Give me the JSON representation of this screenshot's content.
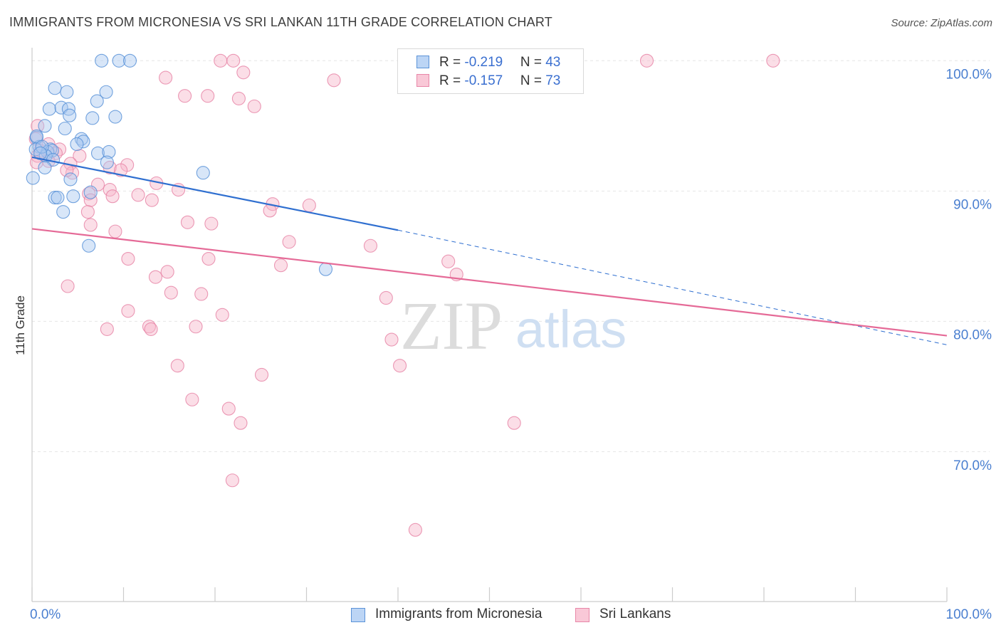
{
  "title": "IMMIGRANTS FROM MICRONESIA VS SRI LANKAN 11TH GRADE CORRELATION CHART",
  "source": "Source: ZipAtlas.com",
  "watermark": {
    "zip": "ZIP",
    "atlas": "atlas"
  },
  "legend": {
    "series1": {
      "r_label": "R = ",
      "r_value": "-0.219",
      "n_label": "N = ",
      "n_value": "43"
    },
    "series2": {
      "r_label": "R = ",
      "r_value": "-0.157",
      "n_label": "N = ",
      "n_value": "73"
    }
  },
  "colors": {
    "blue_fill": "#a8c8f0",
    "blue_stroke": "#5b93d8",
    "blue_line": "#2f6fd0",
    "pink_fill": "#f6b5ca",
    "pink_stroke": "#e887a8",
    "pink_line": "#e56a97",
    "grid": "#e6e6e6",
    "axis_text": "#4a7fd0"
  },
  "chart_data": {
    "type": "scatter",
    "title": "IMMIGRANTS FROM MICRONESIA VS SRI LANKAN 11TH GRADE CORRELATION CHART",
    "xlabel": "",
    "ylabel": "11th Grade",
    "xlim": [
      0,
      100
    ],
    "ylim": [
      59.5,
      102
    ],
    "x_tick_labels": [
      {
        "value": 0,
        "label": "0.0%"
      },
      {
        "value": 100,
        "label": "100.0%"
      }
    ],
    "y_tick_labels": [
      {
        "value": 100,
        "label": "100.0%"
      },
      {
        "value": 90,
        "label": "90.0%"
      },
      {
        "value": 80,
        "label": "80.0%"
      },
      {
        "value": 70,
        "label": "70.0%"
      }
    ],
    "y_gridlines": [
      101,
      91,
      81,
      71
    ],
    "series": [
      {
        "name": "Immigrants from Micronesia",
        "color": "blue",
        "R": -0.219,
        "N": 43,
        "trend": {
          "x0": 0,
          "y0": 93.6,
          "x1": 40,
          "y1": 88.0,
          "dash_to_x": 100,
          "dash_y_end": 79.2
        },
        "points": [
          [
            7.6,
            101
          ],
          [
            9.5,
            101
          ],
          [
            10.7,
            101
          ],
          [
            2.5,
            98.9
          ],
          [
            3.8,
            98.6
          ],
          [
            8.1,
            98.6
          ],
          [
            7.1,
            97.9
          ],
          [
            1.9,
            97.3
          ],
          [
            3.2,
            97.4
          ],
          [
            4.0,
            97.3
          ],
          [
            4.1,
            96.8
          ],
          [
            6.6,
            96.6
          ],
          [
            9.1,
            96.7
          ],
          [
            1.4,
            96.0
          ],
          [
            3.6,
            95.8
          ],
          [
            0.5,
            95.1
          ],
          [
            5.4,
            95.0
          ],
          [
            5.6,
            94.8
          ],
          [
            4.9,
            94.6
          ],
          [
            0.8,
            94.4
          ],
          [
            2.0,
            94.2
          ],
          [
            1.7,
            94.0
          ],
          [
            2.2,
            94.1
          ],
          [
            7.2,
            93.9
          ],
          [
            8.4,
            94.0
          ],
          [
            0.4,
            94.2
          ],
          [
            1.5,
            93.7
          ],
          [
            2.3,
            93.4
          ],
          [
            8.2,
            93.2
          ],
          [
            1.4,
            92.8
          ],
          [
            18.7,
            92.4
          ],
          [
            0.1,
            92.0
          ],
          [
            4.2,
            91.9
          ],
          [
            6.4,
            90.9
          ],
          [
            4.5,
            90.6
          ],
          [
            2.5,
            90.5
          ],
          [
            2.8,
            90.5
          ],
          [
            3.4,
            89.4
          ],
          [
            6.2,
            86.8
          ],
          [
            32.1,
            85.0
          ],
          [
            0.5,
            95.2
          ],
          [
            1.1,
            94.4
          ],
          [
            0.9,
            93.9
          ]
        ]
      },
      {
        "name": "Sri Lankans",
        "color": "pink",
        "R": -0.157,
        "N": 73,
        "trend": {
          "x0": 0,
          "y0": 88.1,
          "x1": 100,
          "y1": 79.9
        },
        "points": [
          [
            20.6,
            101
          ],
          [
            22.0,
            101
          ],
          [
            67.2,
            101
          ],
          [
            81.0,
            101
          ],
          [
            23.1,
            100.1
          ],
          [
            14.6,
            99.7
          ],
          [
            33.0,
            99.5
          ],
          [
            16.7,
            98.3
          ],
          [
            19.2,
            98.3
          ],
          [
            22.6,
            98.1
          ],
          [
            24.3,
            97.5
          ],
          [
            0.4,
            95.0
          ],
          [
            1.8,
            94.6
          ],
          [
            0.9,
            94.1
          ],
          [
            3.0,
            94.2
          ],
          [
            0.6,
            93.7
          ],
          [
            2.6,
            93.9
          ],
          [
            5.2,
            93.7
          ],
          [
            1.8,
            93.3
          ],
          [
            0.5,
            93.2
          ],
          [
            4.2,
            93.1
          ],
          [
            4.4,
            92.4
          ],
          [
            3.8,
            92.6
          ],
          [
            8.5,
            92.8
          ],
          [
            10.4,
            93.0
          ],
          [
            9.7,
            92.6
          ],
          [
            7.2,
            91.5
          ],
          [
            13.6,
            91.6
          ],
          [
            6.2,
            90.8
          ],
          [
            8.5,
            91.1
          ],
          [
            16.0,
            91.1
          ],
          [
            11.6,
            90.7
          ],
          [
            8.8,
            90.6
          ],
          [
            13.1,
            90.3
          ],
          [
            6.4,
            90.3
          ],
          [
            26.3,
            90.0
          ],
          [
            30.3,
            89.9
          ],
          [
            6.1,
            89.4
          ],
          [
            26.0,
            89.5
          ],
          [
            17.0,
            88.6
          ],
          [
            19.6,
            88.5
          ],
          [
            9.1,
            87.9
          ],
          [
            6.4,
            88.4
          ],
          [
            28.1,
            87.1
          ],
          [
            37.0,
            86.8
          ],
          [
            10.5,
            85.8
          ],
          [
            19.3,
            85.8
          ],
          [
            27.2,
            85.3
          ],
          [
            45.5,
            85.6
          ],
          [
            46.4,
            84.6
          ],
          [
            14.8,
            84.8
          ],
          [
            13.5,
            84.4
          ],
          [
            3.9,
            83.7
          ],
          [
            15.2,
            83.2
          ],
          [
            18.5,
            83.1
          ],
          [
            38.7,
            82.8
          ],
          [
            10.5,
            81.8
          ],
          [
            20.8,
            81.5
          ],
          [
            8.2,
            80.4
          ],
          [
            12.8,
            80.6
          ],
          [
            17.9,
            80.6
          ],
          [
            13.0,
            80.4
          ],
          [
            39.3,
            79.6
          ],
          [
            15.9,
            77.6
          ],
          [
            25.1,
            76.9
          ],
          [
            40.2,
            77.6
          ],
          [
            17.5,
            75.0
          ],
          [
            21.5,
            74.3
          ],
          [
            22.8,
            73.2
          ],
          [
            52.7,
            73.2
          ],
          [
            21.9,
            68.8
          ],
          [
            41.9,
            65.0
          ],
          [
            0.6,
            96.0
          ]
        ]
      }
    ]
  },
  "bottom_legend": {
    "series1": "Immigrants from Micronesia",
    "series2": "Sri Lankans"
  }
}
